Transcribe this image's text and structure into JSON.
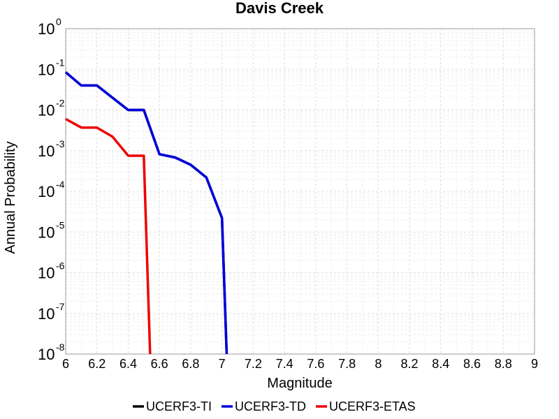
{
  "chart_data": {
    "type": "line",
    "title": "Davis Creek",
    "xlabel": "Magnitude",
    "ylabel": "Annual Probability",
    "xlim": [
      6,
      9
    ],
    "ylim": [
      1e-08,
      1
    ],
    "yscale": "log",
    "grid": true,
    "legend_position": "bottom",
    "x_ticks": [
      "6",
      "6.2",
      "6.4",
      "6.6",
      "6.8",
      "7",
      "7.2",
      "7.4",
      "7.6",
      "7.8",
      "8",
      "8.2",
      "8.4",
      "8.6",
      "8.8",
      "9"
    ],
    "y_ticks": [
      {
        "base": "10",
        "exp": "0",
        "value": 1
      },
      {
        "base": "10",
        "exp": "-1",
        "value": 0.1
      },
      {
        "base": "10",
        "exp": "-2",
        "value": 0.01
      },
      {
        "base": "10",
        "exp": "-3",
        "value": 0.001
      },
      {
        "base": "10",
        "exp": "-4",
        "value": 0.0001
      },
      {
        "base": "10",
        "exp": "-5",
        "value": 1e-05
      },
      {
        "base": "10",
        "exp": "-6",
        "value": 1e-06
      },
      {
        "base": "10",
        "exp": "-7",
        "value": 1e-07
      },
      {
        "base": "10",
        "exp": "-8",
        "value": 1e-08
      }
    ],
    "series": [
      {
        "name": "UCERF3-TI",
        "color": "#000000",
        "x": [
          6.0,
          6.1,
          6.2,
          6.3,
          6.4,
          6.5,
          6.6,
          6.7,
          6.8,
          6.9,
          7.0,
          7.03
        ],
        "y": [
          0.085,
          0.04,
          0.04,
          0.02,
          0.01,
          0.01,
          0.00082,
          0.00068,
          0.00045,
          0.00022,
          2.2e-05,
          1e-08
        ]
      },
      {
        "name": "UCERF3-TD",
        "color": "#0000dd",
        "x": [
          6.0,
          6.1,
          6.2,
          6.3,
          6.4,
          6.5,
          6.6,
          6.7,
          6.8,
          6.9,
          7.0,
          7.03
        ],
        "y": [
          0.085,
          0.04,
          0.04,
          0.02,
          0.01,
          0.01,
          0.00082,
          0.00068,
          0.00045,
          0.00022,
          2.2e-05,
          1e-08
        ]
      },
      {
        "name": "UCERF3-ETAS",
        "color": "#ee0000",
        "x": [
          6.0,
          6.1,
          6.2,
          6.3,
          6.4,
          6.5,
          6.54
        ],
        "y": [
          0.006,
          0.0037,
          0.0037,
          0.0022,
          0.00075,
          0.00075,
          1e-08
        ]
      }
    ]
  }
}
